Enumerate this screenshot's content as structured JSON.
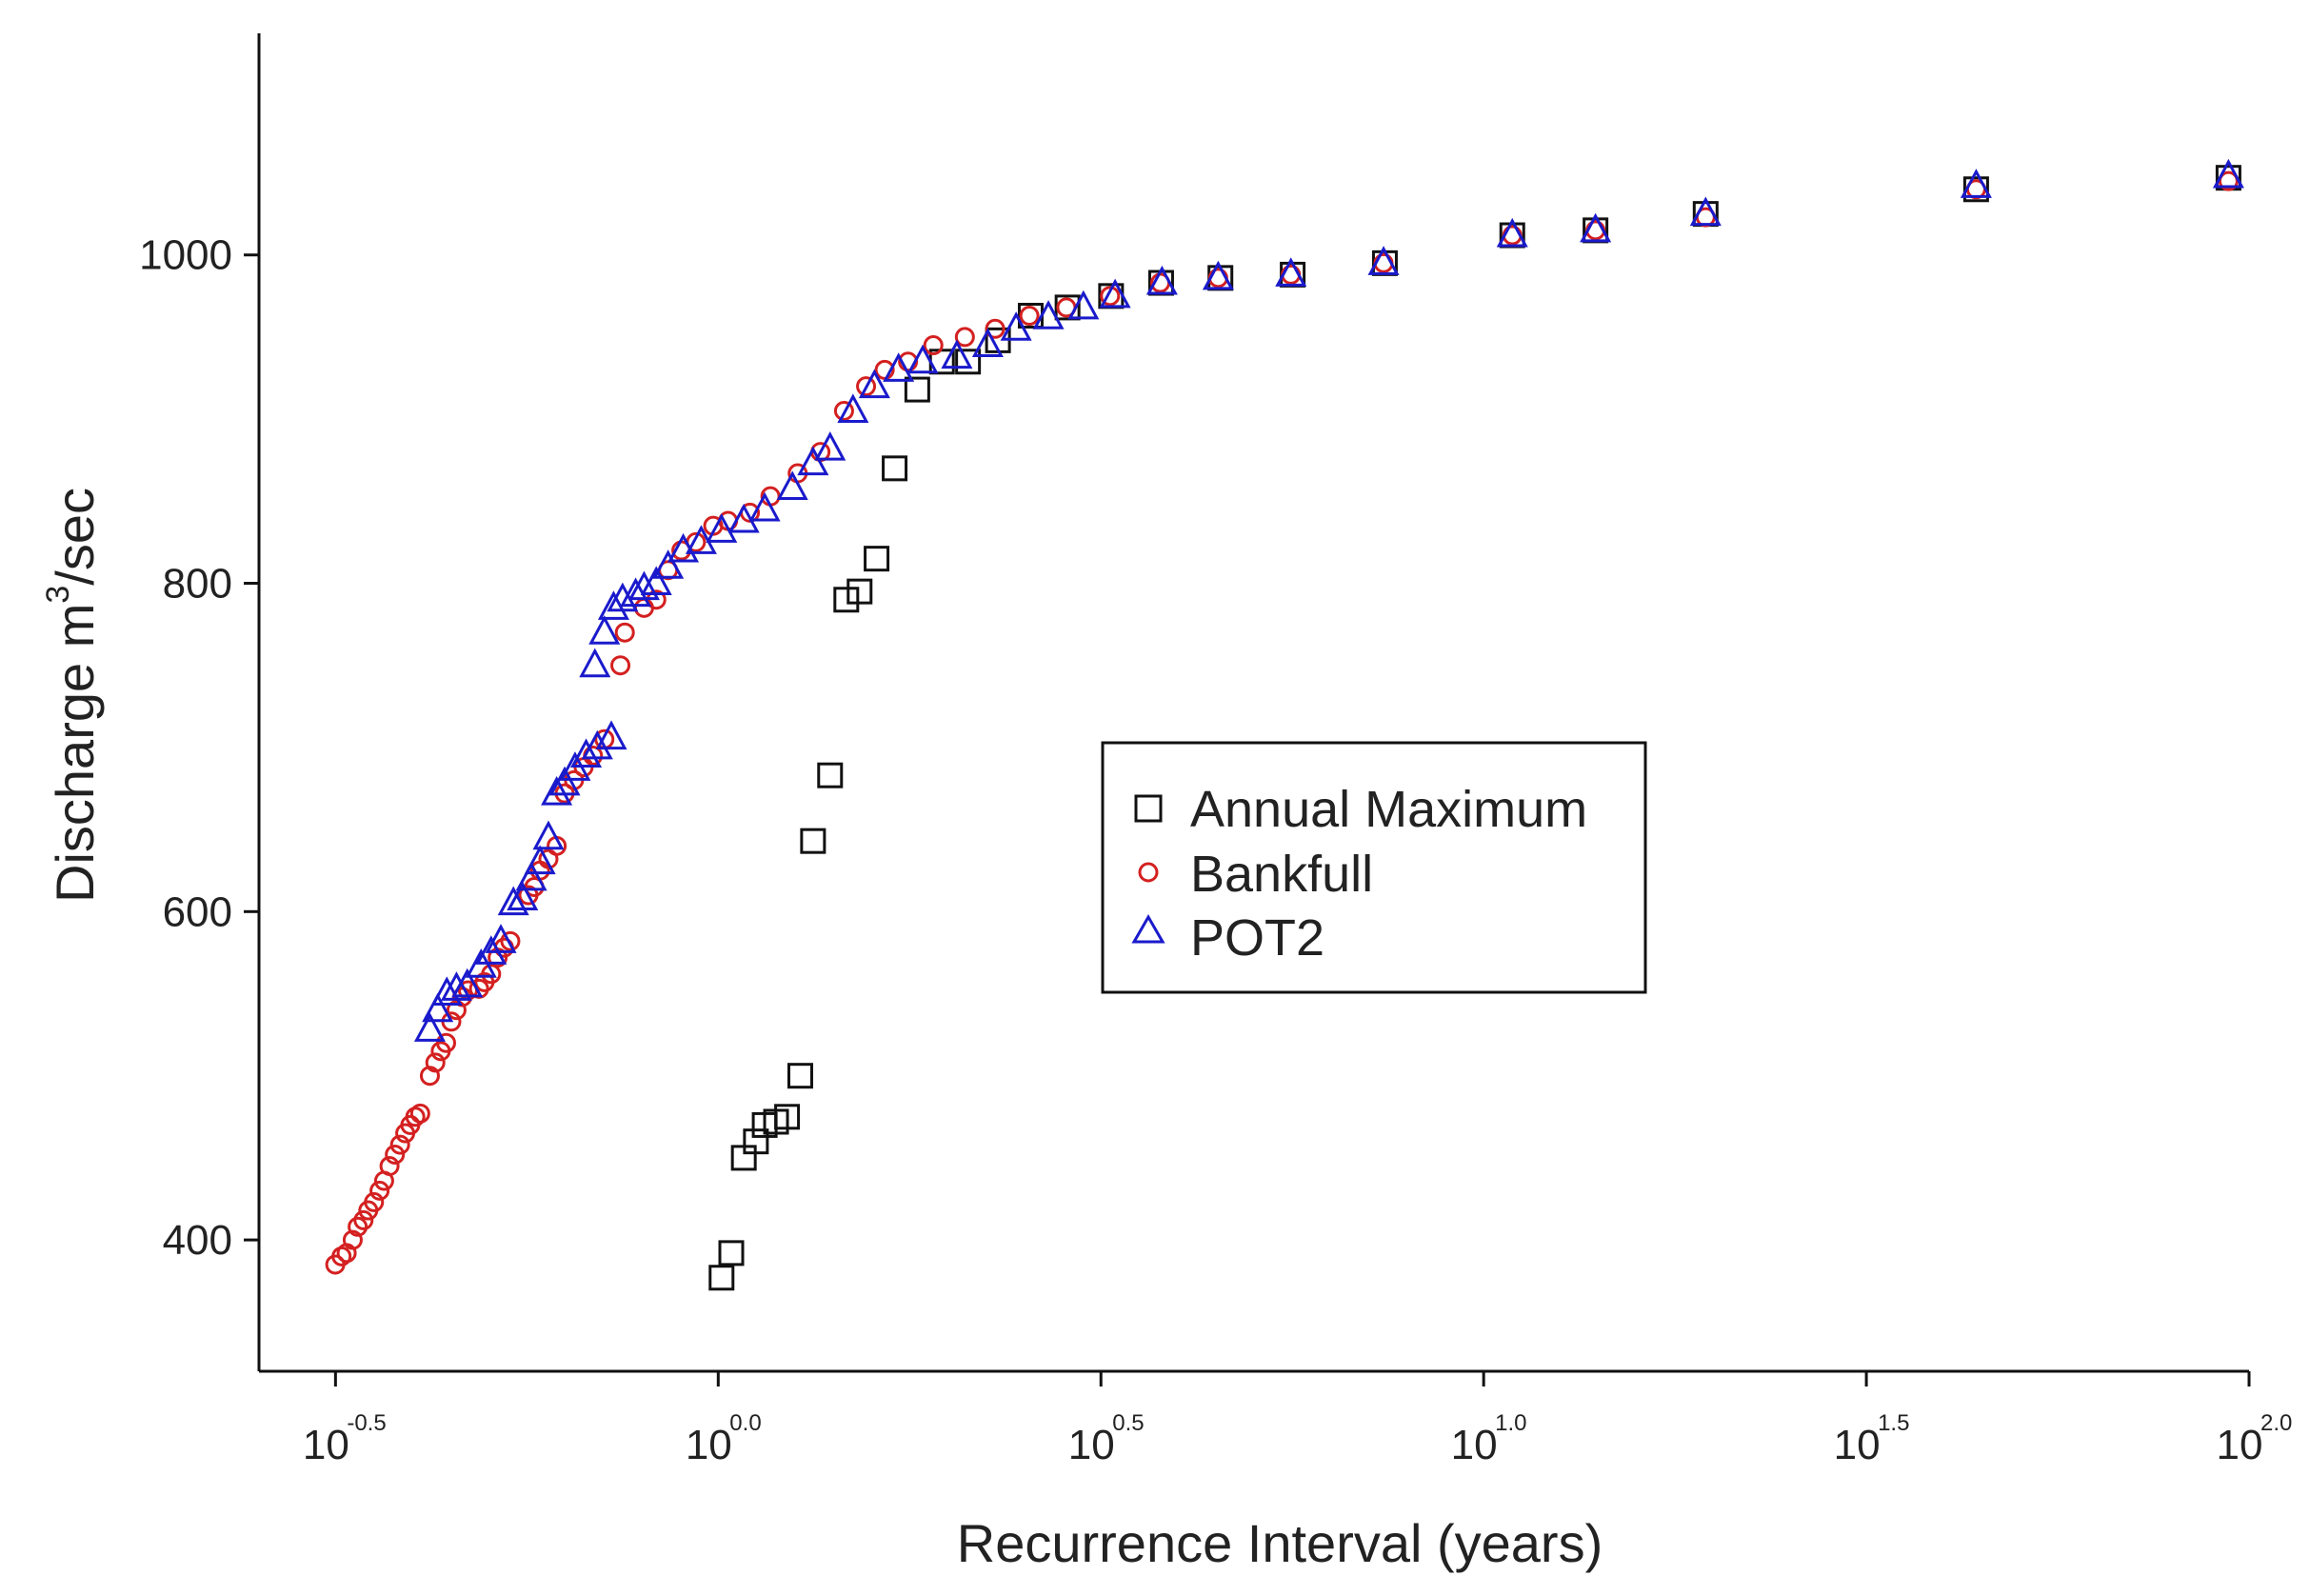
{
  "chart_data": {
    "type": "scatter",
    "title": "",
    "xlabel": "Recurrence Interval (years)",
    "ylabel": "Discharge m³/sec",
    "ylabel_parts": {
      "prefix": "Discharge m",
      "superscript": "3",
      "suffix": "/sec"
    },
    "x_scale": "log10",
    "x_range_years": [
      0.2512,
      100
    ],
    "xlim_log10": [
      -0.6,
      2.0
    ],
    "ylim": [
      320,
      1135
    ],
    "xticks": [
      {
        "value_years": 0.3162,
        "log10": -0.5,
        "base": "10",
        "exp": "-0.5"
      },
      {
        "value_years": 1.0,
        "log10": 0.0,
        "base": "10",
        "exp": "0.0"
      },
      {
        "value_years": 3.1623,
        "log10": 0.5,
        "base": "10",
        "exp": "0.5"
      },
      {
        "value_years": 10.0,
        "log10": 1.0,
        "base": "10",
        "exp": "1.0"
      },
      {
        "value_years": 31.623,
        "log10": 1.5,
        "base": "10",
        "exp": "1.5"
      },
      {
        "value_years": 100.0,
        "log10": 2.0,
        "base": "10",
        "exp": "2.0"
      }
    ],
    "yticks": [
      400,
      600,
      800,
      1000
    ],
    "grid": false,
    "legend_position": "center-right",
    "series": [
      {
        "name": "Annual Maximum",
        "marker": "square",
        "color": "#111111",
        "points": [
          [
            1.01,
            377
          ],
          [
            1.04,
            392
          ],
          [
            1.08,
            450
          ],
          [
            1.12,
            460
          ],
          [
            1.15,
            470
          ],
          [
            1.19,
            472
          ],
          [
            1.23,
            475
          ],
          [
            1.28,
            500
          ],
          [
            1.33,
            643
          ],
          [
            1.4,
            683
          ],
          [
            1.47,
            790
          ],
          [
            1.53,
            795
          ],
          [
            1.61,
            815
          ],
          [
            1.7,
            870
          ],
          [
            1.82,
            918
          ],
          [
            1.96,
            935
          ],
          [
            2.12,
            935
          ],
          [
            2.32,
            948
          ],
          [
            2.56,
            963
          ],
          [
            2.86,
            968
          ],
          [
            3.26,
            975
          ],
          [
            3.79,
            983
          ],
          [
            4.53,
            986
          ],
          [
            5.63,
            988
          ],
          [
            7.43,
            995
          ],
          [
            10.9,
            1012
          ],
          [
            14.0,
            1015
          ],
          [
            19.5,
            1025
          ],
          [
            44.0,
            1040
          ],
          [
            94.0,
            1047
          ]
        ]
      },
      {
        "name": "Bankfull",
        "marker": "circle",
        "color": "#d42020",
        "points": [
          [
            0.316,
            385
          ],
          [
            0.322,
            390
          ],
          [
            0.327,
            392
          ],
          [
            0.333,
            400
          ],
          [
            0.338,
            408
          ],
          [
            0.344,
            412
          ],
          [
            0.349,
            418
          ],
          [
            0.355,
            423
          ],
          [
            0.361,
            430
          ],
          [
            0.366,
            436
          ],
          [
            0.372,
            445
          ],
          [
            0.378,
            452
          ],
          [
            0.384,
            458
          ],
          [
            0.39,
            465
          ],
          [
            0.396,
            470
          ],
          [
            0.402,
            475
          ],
          [
            0.408,
            477
          ],
          [
            0.42,
            500
          ],
          [
            0.427,
            508
          ],
          [
            0.434,
            515
          ],
          [
            0.441,
            520
          ],
          [
            0.448,
            533
          ],
          [
            0.455,
            540
          ],
          [
            0.463,
            548
          ],
          [
            0.471,
            552
          ],
          [
            0.487,
            553
          ],
          [
            0.495,
            557
          ],
          [
            0.505,
            562
          ],
          [
            0.515,
            572
          ],
          [
            0.525,
            578
          ],
          [
            0.535,
            582
          ],
          [
            0.565,
            610
          ],
          [
            0.575,
            615
          ],
          [
            0.585,
            625
          ],
          [
            0.6,
            632
          ],
          [
            0.615,
            640
          ],
          [
            0.63,
            672
          ],
          [
            0.648,
            680
          ],
          [
            0.667,
            688
          ],
          [
            0.686,
            695
          ],
          [
            0.71,
            705
          ],
          [
            0.745,
            750
          ],
          [
            0.755,
            770
          ],
          [
            0.8,
            785
          ],
          [
            0.83,
            790
          ],
          [
            0.86,
            808
          ],
          [
            0.895,
            820
          ],
          [
            0.935,
            825
          ],
          [
            0.985,
            835
          ],
          [
            1.03,
            838
          ],
          [
            1.1,
            843
          ],
          [
            1.17,
            853
          ],
          [
            1.27,
            867
          ],
          [
            1.36,
            880
          ],
          [
            1.46,
            905
          ],
          [
            1.56,
            920
          ],
          [
            1.65,
            930
          ],
          [
            1.77,
            935
          ],
          [
            1.91,
            945
          ],
          [
            2.1,
            950
          ],
          [
            2.3,
            955
          ],
          [
            2.55,
            963
          ],
          [
            2.85,
            968
          ],
          [
            3.25,
            975
          ],
          [
            3.78,
            983
          ],
          [
            4.5,
            986
          ],
          [
            5.6,
            988
          ],
          [
            7.4,
            995
          ],
          [
            10.9,
            1012
          ],
          [
            14.0,
            1015
          ],
          [
            19.5,
            1023
          ],
          [
            44.0,
            1040
          ],
          [
            94.0,
            1045
          ]
        ]
      },
      {
        "name": "POT2",
        "marker": "triangle",
        "color": "#1a1acc",
        "points": [
          [
            0.42,
            528
          ],
          [
            0.43,
            540
          ],
          [
            0.442,
            550
          ],
          [
            0.455,
            553
          ],
          [
            0.47,
            555
          ],
          [
            0.49,
            567
          ],
          [
            0.505,
            575
          ],
          [
            0.52,
            582
          ],
          [
            0.54,
            605
          ],
          [
            0.555,
            608
          ],
          [
            0.57,
            620
          ],
          [
            0.585,
            630
          ],
          [
            0.6,
            645
          ],
          [
            0.615,
            672
          ],
          [
            0.63,
            678
          ],
          [
            0.65,
            687
          ],
          [
            0.672,
            695
          ],
          [
            0.695,
            700
          ],
          [
            0.725,
            706
          ],
          [
            0.69,
            750
          ],
          [
            0.71,
            770
          ],
          [
            0.73,
            785
          ],
          [
            0.75,
            790
          ],
          [
            0.78,
            793
          ],
          [
            0.8,
            797
          ],
          [
            0.83,
            800
          ],
          [
            0.86,
            810
          ],
          [
            0.9,
            820
          ],
          [
            0.95,
            825
          ],
          [
            1.01,
            832
          ],
          [
            1.08,
            838
          ],
          [
            1.15,
            845
          ],
          [
            1.25,
            858
          ],
          [
            1.33,
            873
          ],
          [
            1.4,
            882
          ],
          [
            1.5,
            905
          ],
          [
            1.6,
            920
          ],
          [
            1.72,
            930
          ],
          [
            1.85,
            935
          ],
          [
            2.05,
            938
          ],
          [
            2.25,
            945
          ],
          [
            2.45,
            955
          ],
          [
            2.7,
            962
          ],
          [
            3.0,
            968
          ],
          [
            3.3,
            975
          ],
          [
            3.8,
            983
          ],
          [
            4.5,
            986
          ],
          [
            5.6,
            988
          ],
          [
            7.4,
            995
          ],
          [
            10.9,
            1012
          ],
          [
            14.0,
            1015
          ],
          [
            19.5,
            1025
          ],
          [
            44.0,
            1042
          ],
          [
            94.0,
            1048
          ]
        ]
      }
    ]
  }
}
